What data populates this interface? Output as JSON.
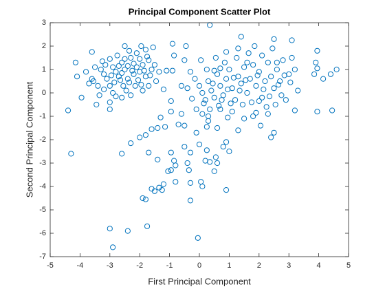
{
  "chart_data": {
    "type": "scatter",
    "title": "Principal Component Scatter Plot",
    "x_label": "First Principal Component",
    "y_label": "Second Principal Component",
    "color": "#0072bd",
    "xlim": [
      -5,
      5
    ],
    "ylim": [
      -7,
      3
    ],
    "xticks": [
      -5,
      -4,
      -3,
      -2,
      -1,
      0,
      1,
      2,
      3,
      4,
      5
    ],
    "yticks": [
      -7,
      -6,
      -5,
      -4,
      -3,
      -2,
      -1,
      0,
      1,
      2,
      3
    ],
    "x": [
      -4.4,
      -4.3,
      -3.0,
      -2.9,
      -2.4,
      -1.75,
      -0.05,
      -1.9,
      -1.8,
      -1.5,
      -1.35,
      -1.2,
      -0.3,
      0.9,
      0.35,
      0.35,
      1.4,
      4.6,
      4.4,
      4.45,
      3.95,
      3.95,
      3.3,
      3.1,
      2.5,
      -4.15,
      -4.1,
      -3.95,
      -3.6,
      -3.55,
      -3.45,
      -3.0,
      -2.6,
      -2.3,
      -2.0,
      -1.8,
      -1.7,
      -1.4,
      -1.6,
      -1.15,
      -0.95,
      -0.85,
      -0.95,
      -0.8,
      -0.4,
      -0.35,
      -0.3,
      0.05,
      0.1,
      -0.8,
      -1.05,
      -1.6,
      -1.25,
      0.55,
      0.6,
      0.9,
      1.0,
      0.8,
      0.25,
      0.2,
      0.5,
      -0.5,
      -0.3,
      0.0,
      -0.1,
      0.25,
      -0.5,
      -0.6,
      -1.3,
      -0.95,
      -0.7,
      -1.4,
      1.3,
      1.5,
      2.5,
      2.4,
      2.05,
      1.9,
      3.2,
      0.95,
      0.7,
      -0.1,
      0.6,
      0.3,
      0.1,
      -3.3,
      -3.2,
      -3.1,
      -3.0,
      -2.9,
      -2.8,
      -2.7,
      -2.6,
      -2.5,
      -2.4,
      -2.3,
      -2.2,
      -2.1,
      -2.0,
      -1.9,
      -1.8,
      -1.7,
      -1.6,
      -2.55,
      -2.45,
      -2.9,
      -3.4,
      -3.6,
      -3.8,
      -3.25,
      -3.0,
      -2.75,
      -2.5,
      -2.35,
      -2.1,
      -1.95,
      -1.8,
      -1.55,
      -1.5,
      -1.45,
      -1.7,
      -1.9,
      -2.15,
      -2.3,
      -2.6,
      -3.0,
      -3.35,
      -2.2,
      -2.65,
      -2.85,
      -3.15,
      -2.95,
      -2.4,
      -2.05,
      -1.85,
      -1.65,
      -2.25,
      -2.6,
      -3.5,
      -3.7,
      -1.95,
      -2.0,
      -2.7,
      -2.35,
      -3.2,
      -1.35,
      -0.9,
      -0.9,
      -0.85,
      -0.5,
      -0.45,
      -1.2,
      -0.95,
      -0.6,
      -0.4,
      -1.1,
      -2.8,
      -2.5,
      -1.75,
      0.0,
      0.1,
      0.2,
      0.3,
      0.4,
      0.5,
      0.6,
      0.7,
      0.8,
      0.9,
      1.0,
      1.1,
      1.2,
      1.3,
      1.4,
      1.5,
      1.6,
      1.7,
      1.8,
      1.9,
      2.0,
      2.1,
      2.2,
      2.3,
      2.4,
      2.5,
      2.6,
      2.7,
      2.8,
      2.9,
      3.0,
      3.1,
      3.2,
      2.55,
      2.25,
      1.75,
      1.45,
      1.05,
      0.65,
      0.35,
      0.85,
      1.25,
      1.65,
      2.1,
      2.45,
      1.85,
      1.3,
      0.9,
      0.55,
      0.25,
      -0.15,
      -0.3,
      0.5,
      0.75,
      0.95,
      1.15,
      1.35,
      1.55,
      1.95,
      2.15,
      2.35,
      2.65,
      2.85,
      3.05,
      0.15,
      0.45,
      0.7,
      1.6,
      2.0,
      1.1,
      0.3,
      1.8,
      2.3,
      0.05,
      -0.25,
      3.9,
      3.85,
      3.95,
      4.15,
      2.6,
      2.75
    ],
    "values": [
      -0.75,
      -2.6,
      -5.8,
      -6.6,
      -5.9,
      -5.7,
      -6.2,
      -4.5,
      -4.55,
      -4.2,
      -4.05,
      -3.9,
      -4.6,
      -4.15,
      -2.95,
      2.9,
      2.4,
      1.0,
      0.8,
      -0.75,
      -0.8,
      1.8,
      0.1,
      2.25,
      2.3,
      1.3,
      0.7,
      -0.2,
      1.75,
      0.5,
      -0.5,
      -0.7,
      -2.6,
      -2.15,
      -1.9,
      -1.8,
      -2.55,
      -2.85,
      -1.55,
      -1.45,
      -2.55,
      -2.9,
      -3.3,
      -3.1,
      -3.0,
      -3.3,
      -3.85,
      -3.8,
      -4.0,
      -3.8,
      -3.35,
      -4.1,
      -4.15,
      -2.75,
      -3.0,
      -2.1,
      -2.5,
      -2.3,
      -2.45,
      -2.9,
      -3.35,
      -2.3,
      -2.55,
      -2.2,
      -1.7,
      -1.45,
      -1.4,
      -0.9,
      -1.05,
      -0.8,
      -1.35,
      -1.5,
      -1.6,
      -1.1,
      -1.7,
      -1.9,
      -1.4,
      -0.85,
      -0.75,
      -1.05,
      -0.7,
      -0.7,
      -1.5,
      -1.2,
      -0.9,
      1.0,
      0.8,
      0.6,
      0.3,
      1.1,
      0.9,
      0.7,
      1.3,
      1.0,
      0.6,
      1.5,
      0.8,
      1.1,
      0.9,
      1.2,
      0.7,
      1.4,
      1.0,
      0.3,
      0.1,
      0.0,
      0.3,
      0.6,
      0.9,
      1.35,
      1.45,
      1.6,
      2.0,
      1.8,
      1.7,
      2.0,
      1.85,
      1.95,
      1.2,
      0.5,
      0.3,
      0.1,
      0.3,
      -0.1,
      -0.2,
      -0.4,
      -0.1,
      1.25,
      0.55,
      0.45,
      1.2,
      0.75,
      1.15,
      0.55,
      0.95,
      0.75,
      0.95,
      0.85,
      1.1,
      0.4,
      0.35,
      1.45,
      1.15,
      0.45,
      0.15,
      0.9,
      0.95,
      2.1,
      1.6,
      1.4,
      2.0,
      0.15,
      -0.35,
      0.3,
      0.2,
      0.95,
      -0.15,
      1.45,
      1.55,
      0.3,
      0.0,
      -0.3,
      0.5,
      0.1,
      -0.2,
      0.8,
      0.3,
      -0.1,
      0.6,
      1.0,
      0.2,
      -0.3,
      0.7,
      0.4,
      1.1,
      0.0,
      0.6,
      1.2,
      0.3,
      0.9,
      -0.2,
      0.5,
      1.3,
      0.7,
      0.2,
      1.0,
      0.5,
      1.4,
      -0.3,
      0.8,
      1.5,
      1.0,
      -0.5,
      -0.6,
      -0.4,
      -0.5,
      -0.45,
      -0.55,
      -0.7,
      1.3,
      1.5,
      1.7,
      1.6,
      1.9,
      2.0,
      1.9,
      1.75,
      1.5,
      1.0,
      0.6,
      0.9,
      0.95,
      -0.3,
      0.15,
      0.65,
      0.1,
      0.55,
      0.75,
      0.15,
      -0.15,
      0.35,
      0.75,
      0.45,
      -0.45,
      0.4,
      1.05,
      1.3,
      -0.35,
      -0.8,
      -1.0,
      -1.0,
      -0.9,
      1.4,
      -0.25,
      1.3,
      0.8,
      1.05,
      0.6,
      1.3,
      -0.1
    ]
  }
}
